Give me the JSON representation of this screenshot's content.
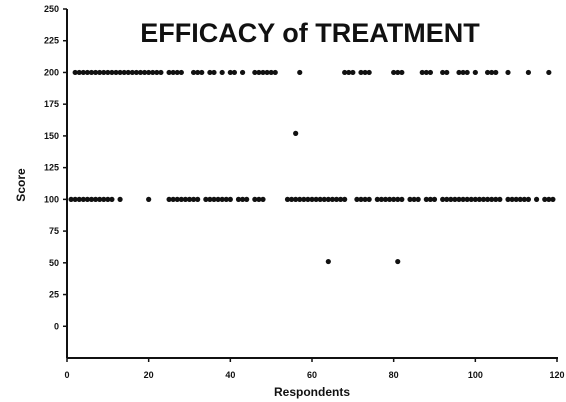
{
  "chart_data": {
    "type": "scatter",
    "title": "EFFICACY of TREATMENT",
    "xlabel": "Respondents",
    "ylabel": "Score",
    "xlim": [
      0,
      120
    ],
    "ylim": [
      -25,
      250
    ],
    "x_ticks": [
      "0",
      "20",
      "40",
      "60",
      "80",
      "100",
      "120"
    ],
    "y_ticks": [
      "0",
      "25",
      "50",
      "75",
      "100",
      "125",
      "150",
      "175",
      "200",
      "225",
      "250"
    ],
    "grid": false,
    "legend": "none",
    "marker_color": "#111111",
    "series": [
      {
        "points": [
          [
            2,
            200
          ],
          [
            3,
            200
          ],
          [
            4,
            200
          ],
          [
            5,
            200
          ],
          [
            6,
            200
          ],
          [
            7,
            200
          ],
          [
            8,
            200
          ],
          [
            9,
            200
          ],
          [
            10,
            200
          ],
          [
            11,
            200
          ],
          [
            12,
            200
          ],
          [
            13,
            200
          ],
          [
            14,
            200
          ],
          [
            15,
            200
          ],
          [
            16,
            200
          ],
          [
            17,
            200
          ],
          [
            18,
            200
          ],
          [
            19,
            200
          ],
          [
            20,
            200
          ],
          [
            21,
            200
          ],
          [
            22,
            200
          ],
          [
            23,
            200
          ],
          [
            25,
            200
          ],
          [
            26,
            200
          ],
          [
            27,
            200
          ],
          [
            28,
            200
          ],
          [
            31,
            200
          ],
          [
            32,
            200
          ],
          [
            33,
            200
          ],
          [
            35,
            200
          ],
          [
            36,
            200
          ],
          [
            38,
            200
          ],
          [
            40,
            200
          ],
          [
            41,
            200
          ],
          [
            43,
            200
          ],
          [
            46,
            200
          ],
          [
            47,
            200
          ],
          [
            48,
            200
          ],
          [
            49,
            200
          ],
          [
            50,
            200
          ],
          [
            51,
            200
          ],
          [
            57,
            200
          ],
          [
            68,
            200
          ],
          [
            69,
            200
          ],
          [
            70,
            200
          ],
          [
            72,
            200
          ],
          [
            73,
            200
          ],
          [
            74,
            200
          ],
          [
            80,
            200
          ],
          [
            81,
            200
          ],
          [
            82,
            200
          ],
          [
            87,
            200
          ],
          [
            88,
            200
          ],
          [
            89,
            200
          ],
          [
            92,
            200
          ],
          [
            93,
            200
          ],
          [
            96,
            200
          ],
          [
            97,
            200
          ],
          [
            98,
            200
          ],
          [
            100,
            200
          ],
          [
            103,
            200
          ],
          [
            104,
            200
          ],
          [
            105,
            200
          ],
          [
            108,
            200
          ],
          [
            113,
            200
          ],
          [
            118,
            200
          ],
          [
            1,
            100
          ],
          [
            2,
            100
          ],
          [
            3,
            100
          ],
          [
            4,
            100
          ],
          [
            5,
            100
          ],
          [
            6,
            100
          ],
          [
            7,
            100
          ],
          [
            8,
            100
          ],
          [
            9,
            100
          ],
          [
            10,
            100
          ],
          [
            11,
            100
          ],
          [
            13,
            100
          ],
          [
            20,
            100
          ],
          [
            25,
            100
          ],
          [
            26,
            100
          ],
          [
            27,
            100
          ],
          [
            28,
            100
          ],
          [
            29,
            100
          ],
          [
            30,
            100
          ],
          [
            31,
            100
          ],
          [
            32,
            100
          ],
          [
            34,
            100
          ],
          [
            35,
            100
          ],
          [
            36,
            100
          ],
          [
            37,
            100
          ],
          [
            38,
            100
          ],
          [
            39,
            100
          ],
          [
            40,
            100
          ],
          [
            42,
            100
          ],
          [
            43,
            100
          ],
          [
            44,
            100
          ],
          [
            46,
            100
          ],
          [
            47,
            100
          ],
          [
            48,
            100
          ],
          [
            54,
            100
          ],
          [
            55,
            100
          ],
          [
            56,
            100
          ],
          [
            57,
            100
          ],
          [
            58,
            100
          ],
          [
            59,
            100
          ],
          [
            60,
            100
          ],
          [
            61,
            100
          ],
          [
            62,
            100
          ],
          [
            63,
            100
          ],
          [
            64,
            100
          ],
          [
            65,
            100
          ],
          [
            66,
            100
          ],
          [
            67,
            100
          ],
          [
            68,
            100
          ],
          [
            71,
            100
          ],
          [
            72,
            100
          ],
          [
            73,
            100
          ],
          [
            74,
            100
          ],
          [
            76,
            100
          ],
          [
            77,
            100
          ],
          [
            78,
            100
          ],
          [
            79,
            100
          ],
          [
            80,
            100
          ],
          [
            81,
            100
          ],
          [
            82,
            100
          ],
          [
            84,
            100
          ],
          [
            85,
            100
          ],
          [
            86,
            100
          ],
          [
            88,
            100
          ],
          [
            89,
            100
          ],
          [
            90,
            100
          ],
          [
            92,
            100
          ],
          [
            93,
            100
          ],
          [
            94,
            100
          ],
          [
            95,
            100
          ],
          [
            96,
            100
          ],
          [
            97,
            100
          ],
          [
            98,
            100
          ],
          [
            99,
            100
          ],
          [
            100,
            100
          ],
          [
            101,
            100
          ],
          [
            102,
            100
          ],
          [
            103,
            100
          ],
          [
            104,
            100
          ],
          [
            105,
            100
          ],
          [
            106,
            100
          ],
          [
            108,
            100
          ],
          [
            109,
            100
          ],
          [
            110,
            100
          ],
          [
            111,
            100
          ],
          [
            112,
            100
          ],
          [
            113,
            100
          ],
          [
            115,
            100
          ],
          [
            117,
            100
          ],
          [
            118,
            100
          ],
          [
            119,
            100
          ],
          [
            56,
            152
          ],
          [
            64,
            51
          ],
          [
            81,
            51
          ]
        ]
      }
    ]
  }
}
